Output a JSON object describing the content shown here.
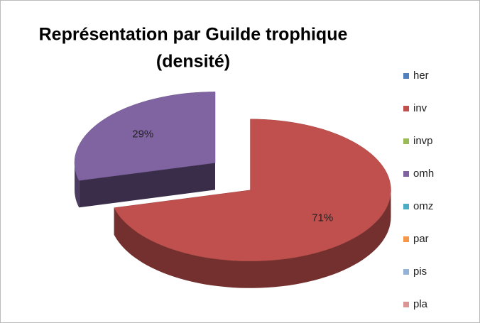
{
  "chart_data": {
    "type": "pie3d",
    "title": "Représentation par Guilde trophique",
    "subtitle": "(densité)",
    "categories": [
      "her",
      "inv",
      "invp",
      "omh",
      "omz",
      "par",
      "pis",
      "pla"
    ],
    "values": [
      0,
      71,
      0,
      29,
      0,
      0,
      0,
      0
    ],
    "value_labels": [
      null,
      "71%",
      null,
      "29%",
      null,
      null,
      null,
      null
    ],
    "colors": [
      "#4f81bd",
      "#c0504d",
      "#9bbb59",
      "#8064a2",
      "#4bacc6",
      "#f79646",
      "#95b3d7",
      "#d99694"
    ],
    "legend": "right"
  }
}
